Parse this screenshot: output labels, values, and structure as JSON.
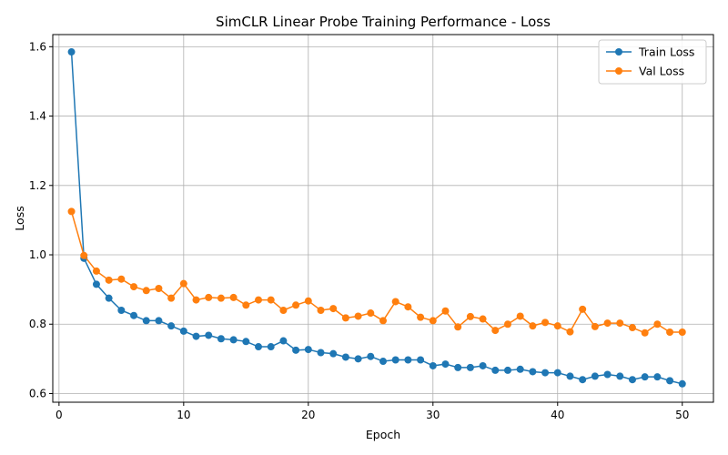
{
  "chart_data": {
    "type": "line",
    "title": "SimCLR Linear Probe Training Performance - Loss",
    "xlabel": "Epoch",
    "ylabel": "Loss",
    "xlim": [
      -0.5,
      52.5
    ],
    "ylim": [
      0.575,
      1.635
    ],
    "xticks": [
      0,
      10,
      20,
      30,
      40,
      50
    ],
    "yticks": [
      0.6,
      0.8,
      1.0,
      1.2,
      1.4,
      1.6
    ],
    "xtick_labels": [
      "0",
      "10",
      "20",
      "30",
      "40",
      "50"
    ],
    "ytick_labels": [
      "0.6",
      "0.8",
      "1.0",
      "1.2",
      "1.4",
      "1.6"
    ],
    "grid": true,
    "legend_position": "top-right",
    "x": [
      1,
      2,
      3,
      4,
      5,
      6,
      7,
      8,
      9,
      10,
      11,
      12,
      13,
      14,
      15,
      16,
      17,
      18,
      19,
      20,
      21,
      22,
      23,
      24,
      25,
      26,
      27,
      28,
      29,
      30,
      31,
      32,
      33,
      34,
      35,
      36,
      37,
      38,
      39,
      40,
      41,
      42,
      43,
      44,
      45,
      46,
      47,
      48,
      49,
      50
    ],
    "series": [
      {
        "name": "Train Loss",
        "color": "#1f77b4",
        "marker": "circle",
        "values": [
          1.585,
          0.99,
          0.915,
          0.875,
          0.84,
          0.825,
          0.81,
          0.81,
          0.795,
          0.78,
          0.765,
          0.768,
          0.758,
          0.755,
          0.75,
          0.735,
          0.735,
          0.752,
          0.725,
          0.727,
          0.718,
          0.715,
          0.705,
          0.7,
          0.707,
          0.693,
          0.697,
          0.697,
          0.697,
          0.68,
          0.685,
          0.675,
          0.675,
          0.68,
          0.667,
          0.667,
          0.67,
          0.663,
          0.66,
          0.66,
          0.65,
          0.64,
          0.65,
          0.655,
          0.65,
          0.64,
          0.648,
          0.648,
          0.637,
          0.628
        ]
      },
      {
        "name": "Val Loss",
        "color": "#ff7f0e",
        "marker": "circle",
        "values": [
          1.125,
          0.998,
          0.953,
          0.927,
          0.93,
          0.908,
          0.897,
          0.903,
          0.875,
          0.917,
          0.87,
          0.877,
          0.875,
          0.877,
          0.855,
          0.87,
          0.87,
          0.84,
          0.855,
          0.867,
          0.84,
          0.845,
          0.818,
          0.823,
          0.832,
          0.81,
          0.865,
          0.85,
          0.82,
          0.81,
          0.838,
          0.792,
          0.822,
          0.815,
          0.782,
          0.8,
          0.823,
          0.795,
          0.805,
          0.795,
          0.778,
          0.843,
          0.793,
          0.803,
          0.803,
          0.79,
          0.775,
          0.8,
          0.777,
          0.777
        ]
      }
    ]
  }
}
